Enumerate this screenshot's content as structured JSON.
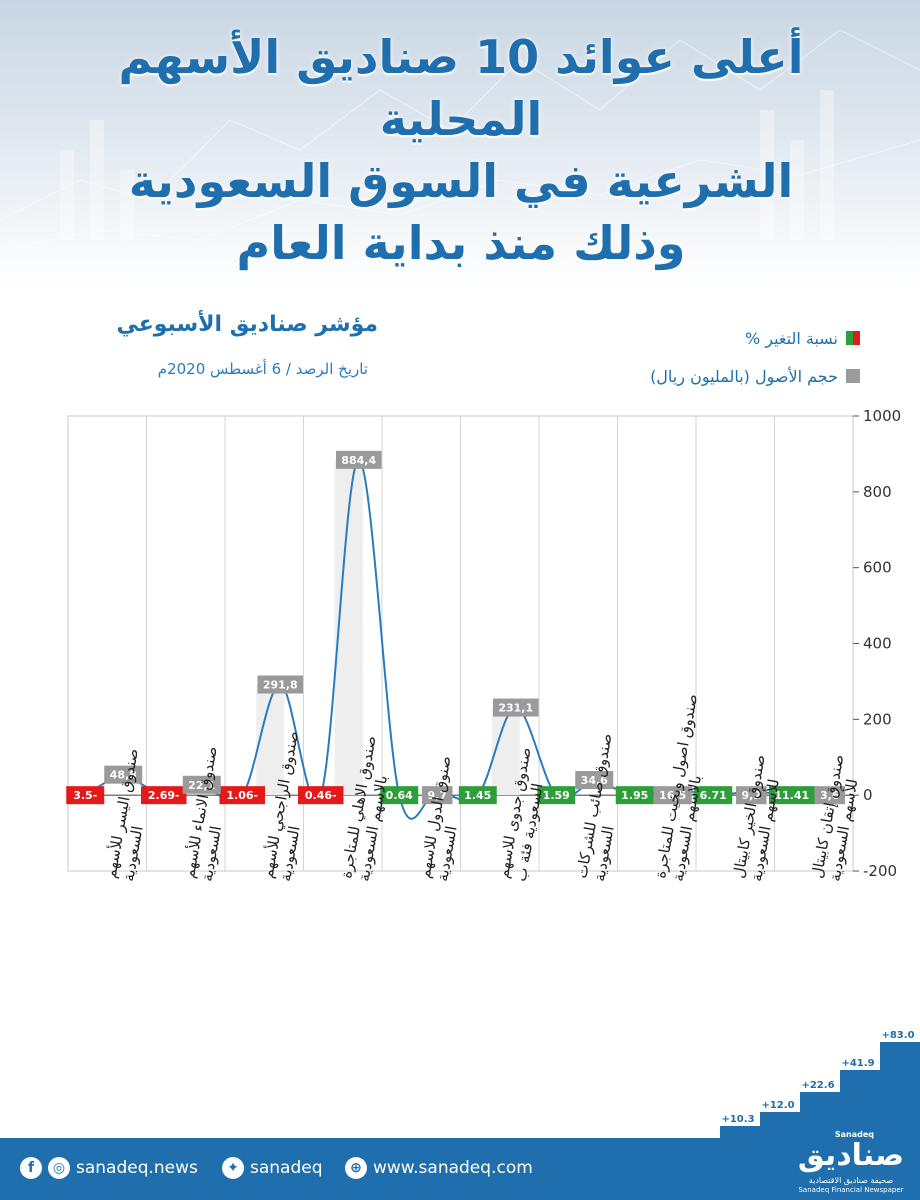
{
  "title_lines": [
    "أعلى عوائد 10 صناديق الأسهم المحلية",
    "الشرعية في السوق السعودية",
    "وذلك منذ بداية العام"
  ],
  "index_title": "مؤشر صناديق الأسبوعي",
  "index_date": "تاريخ الرصد / 6 أغسطس 2020م",
  "legend": {
    "change": "نسبة التغير %",
    "assets": "حجم الأصول (بالمليون ريال)"
  },
  "colors": {
    "brand_blue": "#1f6fae",
    "negative": "#e31a1a",
    "positive": "#2e9e3a",
    "assets_label": "#9a9a9a",
    "line": "#2a7bbf"
  },
  "chart_data": {
    "type": "line",
    "y_ticks": [
      "1000",
      "800",
      "600",
      "400",
      "200",
      "0",
      "-200"
    ],
    "ylim": [
      -200,
      1000
    ],
    "axis_side": "right",
    "categories": [
      [
        "صندوق اليسر للأسهم",
        "السعودية"
      ],
      [
        "صندوق الانماء للأسهم",
        "السعودية"
      ],
      [
        "صندوق الراجحي للأسهم",
        "السعودية"
      ],
      [
        "صندوق الاهلي للمتاجرة",
        "بالاسهم السعودية"
      ],
      [
        "صنوق الدول للاسهم",
        "السعودية"
      ],
      [
        "صندوق جدوى للاسهم",
        "السعودية فئة ب"
      ],
      [
        "صندوق صائب للشركات",
        "السعودية"
      ],
      [
        "صندوق اصول وبخيت للمتاجرة",
        "بالاسهم السعودية"
      ],
      [
        "صندوق الخير كابيتال",
        "للأسهم السعودية"
      ],
      [
        "صندوق إتقان كابيتال",
        "للأسهم السعودية"
      ]
    ],
    "series": [
      {
        "name": "حجم الأصول (بالمليون ريال)",
        "values": [
          48.8,
          22.1,
          291.8,
          884.4,
          9.7,
          231.1,
          34.6,
          16.5,
          9.2,
          3.6
        ],
        "labels": [
          "48,8",
          "22,1",
          "291,8",
          "884,4",
          "9,7",
          "231,1",
          "34,6",
          "16,5",
          "9,2",
          "3,6"
        ]
      },
      {
        "name": "نسبة التغير %",
        "values": [
          -3.5,
          -2.69,
          -1.06,
          -0.46,
          0.64,
          1.45,
          1.59,
          1.95,
          6.71,
          11.41
        ],
        "labels": [
          "3.5-",
          "2.69-",
          "1.06-",
          "0.46-",
          "0.64",
          "1.45",
          "1.59",
          "1.95",
          "6.71",
          "11.41"
        ]
      }
    ],
    "grid": true
  },
  "steps": [
    "+10.3",
    "+12.0",
    "+22.6",
    "+41.9",
    "+83.0"
  ],
  "footer": {
    "news_handle": "sanadeq.news",
    "twitter_handle": "sanadeq",
    "website": "www.sanadeq.com",
    "logo_ar": "صناديق",
    "logo_en": "Sanadeq",
    "logo_tag_ar": "صحيفة صناديق الاقتصادية",
    "logo_tag_en": "Sanadeq Financial Newspaper"
  }
}
